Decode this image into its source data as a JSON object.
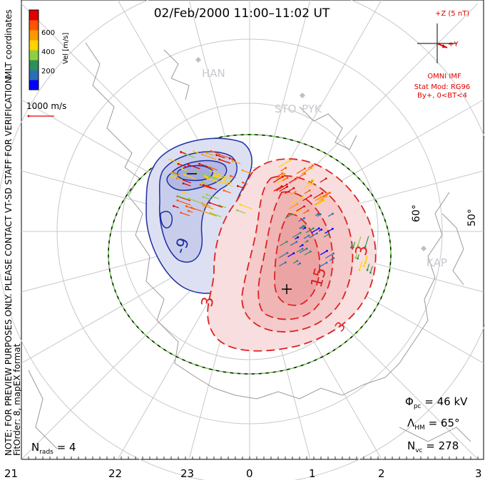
{
  "title": "02/Feb/2000 11:00–11:02 UT",
  "colorbar": {
    "label": "Vel [m/s]",
    "ticks": [
      "600",
      "400",
      "200"
    ],
    "colors": [
      "#0000ff",
      "#2a6fb3",
      "#2f8f5a",
      "#8fcf3f",
      "#ffd400",
      "#ff9900",
      "#ff5500",
      "#e00000"
    ]
  },
  "coordinates_label": "MLT coordinates",
  "vector_scale": "1000 m/s",
  "note_line1": "NOTE: FOR PREVIEW PURPOSES ONLY. PLEASE CONTACT VT-SD STAFF FOR VERIFICATION.",
  "note_line2": "FitOrder: 8, mapEX format",
  "imf": {
    "z_label": "+Z (5 nT)",
    "y_label": "+Y",
    "source": "OMNI IMF",
    "model1": "Stat Mod: RG96",
    "model2": "By+, 0<BT<4"
  },
  "stations": [
    "HAN",
    "STO",
    "PYK",
    "KAP"
  ],
  "lat_labels": [
    "60°",
    "50°"
  ],
  "contour_labels": {
    "neg": "-9",
    "pos1": "3",
    "pos2": "15",
    "pos3": "3",
    "pos4": "3"
  },
  "stats": {
    "phi_pc_sym": "Φ",
    "phi_pc_sub": "pc",
    "phi_pc_val": " = 46 kV",
    "lambda_sym": "Λ",
    "lambda_sub": "HM",
    "lambda_val": " = 65°",
    "nvc_sym": "N",
    "nvc_sub": "vc",
    "nvc_val": " = 278",
    "nrads_sym": "N",
    "nrads_sub": "rads",
    "nrads_val": " = 4"
  },
  "mlt_axis": [
    "21",
    "22",
    "23",
    "0",
    "1",
    "2",
    "3"
  ]
}
